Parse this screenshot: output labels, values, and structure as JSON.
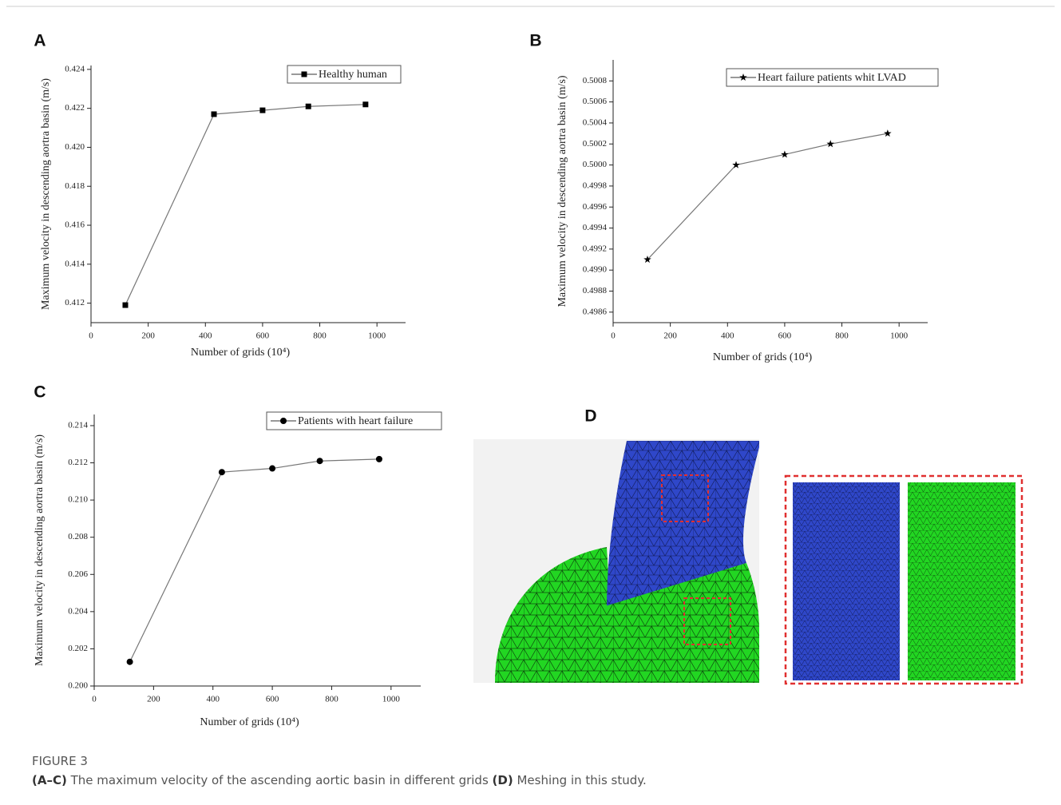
{
  "chart_data": [
    {
      "type": "line",
      "panel": "A",
      "y_label": "Maximum velocity in descending aortra basin (m/s)",
      "x_label": "Number of grids (10⁴)",
      "x": [
        120,
        430,
        600,
        760,
        960
      ],
      "xlim": [
        0,
        1100
      ],
      "xticks": [
        0,
        200,
        400,
        600,
        800,
        1000
      ],
      "ylim": [
        0.411,
        0.4242
      ],
      "yticks": [
        0.412,
        0.414,
        0.416,
        0.418,
        {
          "value": 0.42,
          "label": "0.420"
        },
        0.422,
        0.424
      ],
      "series": [
        {
          "name": "Healthy human",
          "color": "#000000",
          "marker": "square",
          "values": [
            0.4119,
            0.4217,
            0.4219,
            0.4221,
            0.4222
          ]
        }
      ]
    },
    {
      "type": "line",
      "panel": "B",
      "y_label": "Maximum velocity in descending aortra basin (m/s)",
      "x_label": "Number of grids (10⁴)",
      "x": [
        120,
        430,
        600,
        760,
        960
      ],
      "xlim": [
        0,
        1100
      ],
      "xticks": [
        0,
        200,
        400,
        600,
        800,
        1000
      ],
      "ylim": [
        0.4985,
        0.501
      ],
      "yticks": [
        0.4986,
        0.4988,
        {
          "value": 0.499,
          "label": "0.4990"
        },
        0.4992,
        0.4994,
        0.4996,
        0.4998,
        {
          "value": 0.5,
          "label": "0.5000"
        },
        0.5002,
        0.5004,
        0.5006,
        0.5008
      ],
      "series": [
        {
          "name": "Heart failure patients whit LVAD",
          "color": "#000000",
          "marker": "star",
          "values": [
            0.4991,
            0.5,
            0.5001,
            0.5002,
            0.5003
          ]
        }
      ]
    },
    {
      "type": "line",
      "panel": "C",
      "y_label": "Maximum velocity in descending aortra basin (m/s)",
      "x_label": "Number of grids (10⁴)",
      "x": [
        120,
        430,
        600,
        760,
        960
      ],
      "xlim": [
        0,
        1100
      ],
      "xticks": [
        0,
        200,
        400,
        600,
        800,
        1000
      ],
      "ylim": [
        0.2,
        0.2146
      ],
      "yticks": [
        {
          "value": 0.2,
          "label": "0.200"
        },
        0.202,
        0.204,
        0.206,
        0.208,
        {
          "value": 0.21,
          "label": "0.210"
        },
        0.212,
        0.214
      ],
      "series": [
        {
          "name": "Patients with heart failure",
          "color": "#000000",
          "marker": "circle",
          "values": [
            0.2013,
            0.2115,
            0.2117,
            0.2121,
            0.2122
          ]
        }
      ]
    }
  ],
  "panel_d": "D",
  "caption": {
    "figure": "FIGURE 3",
    "parts": [
      "(A–C)",
      " The maximum velocity of the ascending aortic basin in different grids ",
      "(D)",
      " Meshing in this study."
    ]
  }
}
